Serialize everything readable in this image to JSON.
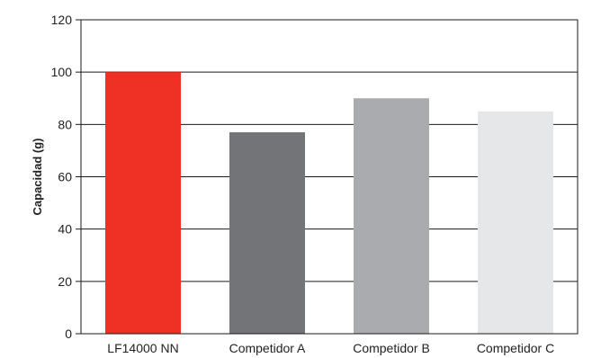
{
  "chart_data": {
    "type": "bar",
    "categories": [
      "LF14000 NN",
      "Competidor A",
      "Competidor B",
      "Competidor C"
    ],
    "values": [
      100,
      77,
      90,
      85
    ],
    "bar_colors": [
      "#ee3124",
      "#737477",
      "#a9abae",
      "#e6e7e8"
    ],
    "title": "",
    "xlabel": "",
    "ylabel": "Capacidad (g)",
    "ylim": [
      0,
      120
    ],
    "yticks": [
      "0",
      "20",
      "40",
      "60",
      "80",
      "100",
      "120"
    ],
    "grid": true,
    "legend": "none"
  }
}
